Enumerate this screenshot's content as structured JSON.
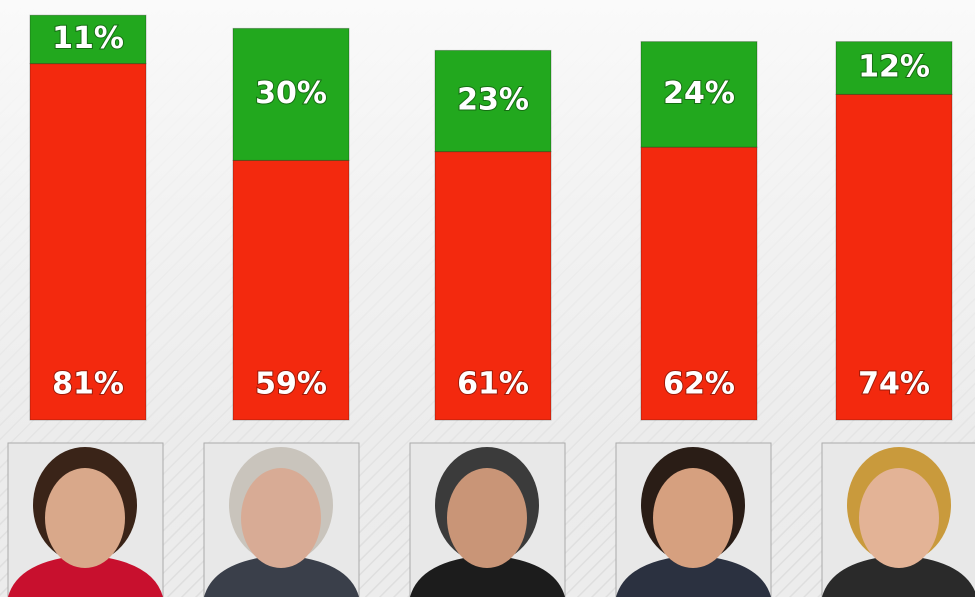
{
  "chart_data": {
    "type": "bar",
    "stacked": true,
    "categories": [
      null,
      null,
      null,
      null,
      null
    ],
    "series": [
      {
        "color": "#f3290e",
        "values": [
          81,
          59,
          61,
          62,
          74
        ],
        "value_labels": [
          "81%",
          "59%",
          "61%",
          "62%",
          "74%"
        ]
      },
      {
        "color": "#22a81e",
        "values": [
          11,
          30,
          23,
          24,
          12
        ],
        "value_labels": [
          "11%",
          "30%",
          "23%",
          "24%",
          "12%"
        ]
      }
    ]
  }
}
